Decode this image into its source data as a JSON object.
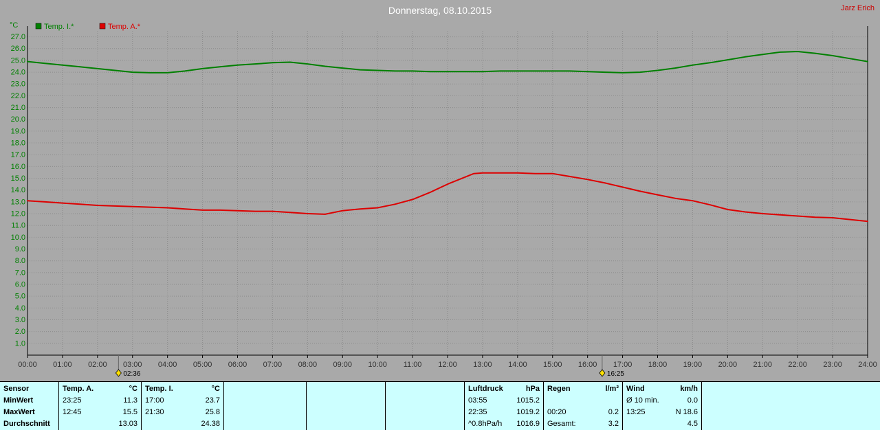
{
  "header": {
    "title": "Donnerstag, 08.10.2015",
    "user": "Jarz Erich"
  },
  "chart_data": {
    "type": "line",
    "title": "Donnerstag, 08.10.2015",
    "unit_label": "°C",
    "ylim": [
      0,
      27.5
    ],
    "xlim_hours": [
      0,
      24
    ],
    "grid": true,
    "legend_position": "top-left",
    "ytick_labels": [
      "1.0",
      "2.0",
      "3.0",
      "4.0",
      "5.0",
      "6.0",
      "7.0",
      "8.0",
      "9.0",
      "10.0",
      "11.0",
      "12.0",
      "13.0",
      "14.0",
      "15.0",
      "16.0",
      "17.0",
      "18.0",
      "19.0",
      "20.0",
      "21.0",
      "22.0",
      "23.0",
      "24.0",
      "25.0",
      "26.0",
      "27.0"
    ],
    "xtick_labels": [
      "00:00",
      "01:00",
      "02:00",
      "03:00",
      "04:00",
      "05:00",
      "06:00",
      "07:00",
      "08:00",
      "09:00",
      "10:00",
      "11:00",
      "12:00",
      "13:00",
      "14:00",
      "15:00",
      "16:00",
      "17:00",
      "18:00",
      "19:00",
      "20:00",
      "21:00",
      "22:00",
      "23:00",
      "24:00"
    ],
    "legend": [
      {
        "label": "Temp. I.*",
        "color": "#008000"
      },
      {
        "label": "Temp. A.*",
        "color": "#dd0000"
      }
    ],
    "series": [
      {
        "name": "Temp. I.*",
        "color": "#008000",
        "points": [
          [
            0,
            24.9
          ],
          [
            0.5,
            24.75
          ],
          [
            1,
            24.6
          ],
          [
            1.5,
            24.45
          ],
          [
            2,
            24.3
          ],
          [
            2.5,
            24.15
          ],
          [
            3,
            24.0
          ],
          [
            3.5,
            23.95
          ],
          [
            4,
            23.95
          ],
          [
            4.5,
            24.1
          ],
          [
            5,
            24.3
          ],
          [
            5.5,
            24.45
          ],
          [
            6,
            24.6
          ],
          [
            6.5,
            24.7
          ],
          [
            7,
            24.8
          ],
          [
            7.5,
            24.85
          ],
          [
            8,
            24.7
          ],
          [
            8.5,
            24.5
          ],
          [
            9,
            24.35
          ],
          [
            9.5,
            24.2
          ],
          [
            10,
            24.15
          ],
          [
            10.5,
            24.1
          ],
          [
            11,
            24.1
          ],
          [
            11.5,
            24.05
          ],
          [
            12,
            24.05
          ],
          [
            12.5,
            24.05
          ],
          [
            13,
            24.05
          ],
          [
            13.5,
            24.1
          ],
          [
            14,
            24.1
          ],
          [
            14.5,
            24.1
          ],
          [
            15,
            24.1
          ],
          [
            15.5,
            24.1
          ],
          [
            16,
            24.05
          ],
          [
            16.5,
            24.0
          ],
          [
            17,
            23.95
          ],
          [
            17.5,
            24.0
          ],
          [
            18,
            24.15
          ],
          [
            18.5,
            24.35
          ],
          [
            19,
            24.6
          ],
          [
            19.5,
            24.8
          ],
          [
            20,
            25.05
          ],
          [
            20.5,
            25.3
          ],
          [
            21,
            25.5
          ],
          [
            21.5,
            25.7
          ],
          [
            22,
            25.75
          ],
          [
            22.5,
            25.6
          ],
          [
            23,
            25.4
          ],
          [
            23.5,
            25.15
          ],
          [
            24,
            24.9
          ]
        ]
      },
      {
        "name": "Temp. A.*",
        "color": "#dd0000",
        "points": [
          [
            0,
            13.1
          ],
          [
            0.5,
            13.0
          ],
          [
            1,
            12.9
          ],
          [
            1.5,
            12.8
          ],
          [
            2,
            12.7
          ],
          [
            2.5,
            12.65
          ],
          [
            3,
            12.6
          ],
          [
            3.5,
            12.55
          ],
          [
            4,
            12.5
          ],
          [
            4.5,
            12.4
          ],
          [
            5,
            12.3
          ],
          [
            5.5,
            12.3
          ],
          [
            6,
            12.25
          ],
          [
            6.5,
            12.2
          ],
          [
            7,
            12.2
          ],
          [
            7.5,
            12.1
          ],
          [
            8,
            12.0
          ],
          [
            8.5,
            11.95
          ],
          [
            9,
            12.25
          ],
          [
            9.5,
            12.4
          ],
          [
            10,
            12.5
          ],
          [
            10.5,
            12.8
          ],
          [
            11,
            13.2
          ],
          [
            11.5,
            13.8
          ],
          [
            12,
            14.5
          ],
          [
            12.5,
            15.1
          ],
          [
            12.75,
            15.4
          ],
          [
            13,
            15.45
          ],
          [
            13.5,
            15.45
          ],
          [
            14,
            15.45
          ],
          [
            14.5,
            15.4
          ],
          [
            15,
            15.4
          ],
          [
            15.5,
            15.15
          ],
          [
            16,
            14.9
          ],
          [
            16.5,
            14.6
          ],
          [
            17,
            14.25
          ],
          [
            17.5,
            13.9
          ],
          [
            18,
            13.6
          ],
          [
            18.5,
            13.3
          ],
          [
            19,
            13.1
          ],
          [
            19.5,
            12.75
          ],
          [
            20,
            12.35
          ],
          [
            20.5,
            12.15
          ],
          [
            21,
            12.0
          ],
          [
            21.5,
            11.9
          ],
          [
            22,
            11.8
          ],
          [
            22.5,
            11.7
          ],
          [
            23,
            11.65
          ],
          [
            23.5,
            11.5
          ],
          [
            24,
            11.35
          ]
        ]
      }
    ],
    "markers": [
      {
        "label": "02:36",
        "hour": 2.6
      },
      {
        "label": "16:25",
        "hour": 16.417
      }
    ],
    "colors": {
      "background": "#a9a9a9",
      "grid": "#8c8c8c",
      "axis": "#000000",
      "xtick_text": "#333333",
      "ytick_text": "#008000",
      "marker_icon": "#ffe000",
      "title_text": "#ffffff",
      "user_text": "#cc0000",
      "table_background": "#ccffff"
    }
  },
  "summary_table": {
    "row_labels": [
      "Sensor",
      "MinWert",
      "MaxWert",
      "Durchschnitt"
    ],
    "sections": [
      {
        "header_left": "Temp. A.",
        "header_right": "°C",
        "rows": [
          [
            "23:25",
            "11.3"
          ],
          [
            "12:45",
            "15.5"
          ],
          [
            "",
            "13.03"
          ]
        ]
      },
      {
        "header_left": "Temp. I.",
        "header_right": "°C",
        "rows": [
          [
            "17:00",
            "23.7"
          ],
          [
            "21:30",
            "25.8"
          ],
          [
            "",
            "24.38"
          ]
        ]
      },
      {
        "header_left": "",
        "header_right": "",
        "rows": [
          [
            "",
            ""
          ],
          [
            "",
            ""
          ],
          [
            "",
            ""
          ]
        ]
      },
      {
        "header_left": "",
        "header_right": "",
        "rows": [
          [
            "",
            ""
          ],
          [
            "",
            ""
          ],
          [
            "",
            ""
          ]
        ]
      },
      {
        "header_left": "",
        "header_right": "",
        "rows": [
          [
            "",
            ""
          ],
          [
            "",
            ""
          ],
          [
            "",
            ""
          ]
        ]
      },
      {
        "header_left": "Luftdruck",
        "header_right": "hPa",
        "rows": [
          [
            "03:55",
            "1015.2"
          ],
          [
            "22:35",
            "1019.2"
          ],
          [
            "^0.8hPa/h",
            "1016.9"
          ]
        ]
      },
      {
        "header_left": "Regen",
        "header_right": "l/m²",
        "rows": [
          [
            "",
            ""
          ],
          [
            "00:20",
            "0.2"
          ],
          [
            "Gesamt:",
            "3.2"
          ]
        ]
      },
      {
        "header_left": "Wind",
        "header_right": "km/h",
        "rows": [
          [
            "Ø 10 min.",
            "0.0"
          ],
          [
            "13:25",
            "N 18.6"
          ],
          [
            "",
            "4.5"
          ]
        ]
      },
      {
        "header_left": "",
        "header_right": "",
        "rows": [
          [
            "",
            ""
          ],
          [
            "",
            ""
          ],
          [
            "",
            ""
          ]
        ]
      }
    ]
  }
}
